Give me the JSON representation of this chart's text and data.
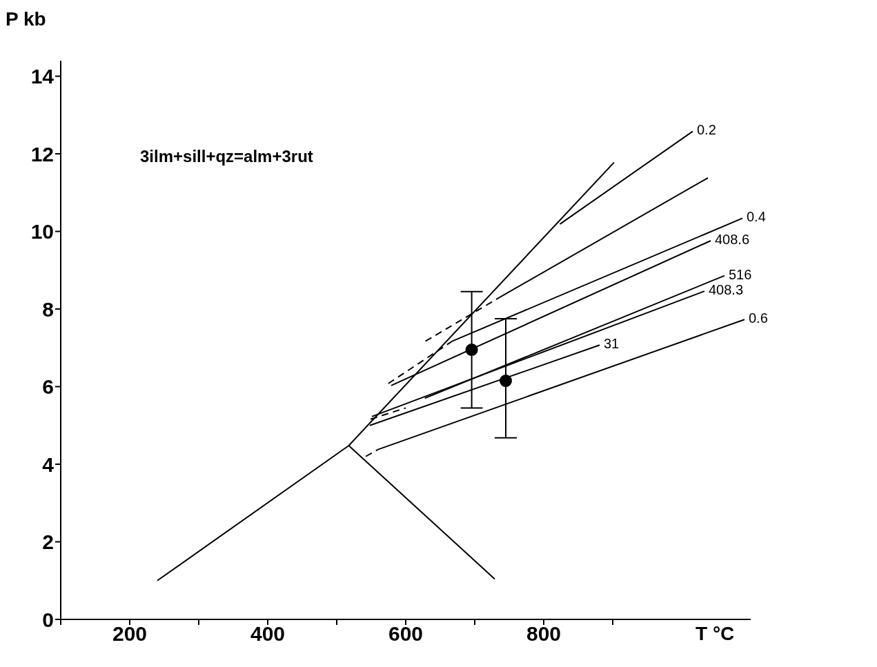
{
  "chart_data": {
    "type": "line",
    "xlabel": "T °C",
    "ylabel": "P kb",
    "annotations": [
      "3ilm+sill+qz=alm+3rut"
    ],
    "xlim": [
      100,
      1100
    ],
    "xticks": [
      {
        "value": 100,
        "label": null
      },
      200,
      {
        "value": 300,
        "label": null
      },
      400,
      {
        "value": 500,
        "label": null
      },
      600,
      {
        "value": 700,
        "label": null
      },
      800,
      {
        "value": 900,
        "label": null
      }
    ],
    "ylim": [
      0,
      14.4
    ],
    "yticks": [
      0,
      2,
      4,
      6,
      8,
      10,
      12,
      14
    ],
    "grid": false,
    "legend": false,
    "marker": "none",
    "line_style": "solid",
    "series": [
      {
        "x": [
          240,
          517.5,
          902
        ],
        "values": [
          1.0,
          4.48,
          11.78
        ],
        "color": "#000000"
      },
      {
        "x": [
          517.5,
          729
        ],
        "values": [
          4.48,
          1.04
        ],
        "color": "#000000"
      },
      {
        "name": "0.2",
        "x": [
          823.5,
          1016
        ],
        "values": [
          10.19,
          12.58
        ],
        "color": "#000000"
      },
      {
        "x": [
          628.6,
          736
        ],
        "values": [
          7.17,
          8.3
        ],
        "color": "#000000",
        "line_style": "dashed"
      },
      {
        "x": [
          736,
          1038
        ],
        "values": [
          8.3,
          11.38
        ],
        "color": "#000000"
      },
      {
        "x": [
          574.8,
          667.4
        ],
        "values": [
          6.08,
          7.17
        ],
        "color": "#000000",
        "line_style": "dashed"
      },
      {
        "name": "0.4",
        "x": [
          667.4,
          1088
        ],
        "values": [
          7.17,
          10.34
        ],
        "color": "#000000"
      },
      {
        "name": "408.6",
        "x": [
          579,
          1042
        ],
        "values": [
          6.03,
          9.76
        ],
        "color": "#000000"
      },
      {
        "x": [
          549,
          600
        ],
        "values": [
          5.16,
          5.45
        ],
        "color": "#000000",
        "line_style": "dashed"
      },
      {
        "name": "516",
        "x": [
          627.7,
          1062
        ],
        "values": [
          5.7,
          8.86
        ],
        "color": "#000000"
      },
      {
        "name": "408.3",
        "x": [
          551,
          1033
        ],
        "values": [
          5.23,
          8.46
        ],
        "color": "#000000"
      },
      {
        "name": "31",
        "x": [
          548,
          881
        ],
        "values": [
          5.0,
          7.07
        ],
        "color": "#000000"
      },
      {
        "x": [
          542,
          560
        ],
        "values": [
          4.2,
          4.38
        ],
        "color": "#000000",
        "line_style": "dashed"
      },
      {
        "name": "0.6",
        "x": [
          560,
          1091
        ],
        "values": [
          4.38,
          7.73
        ],
        "color": "#000000"
      },
      {
        "type": "scatter",
        "x": [
          695.6,
          745
        ],
        "values": [
          6.95,
          6.15
        ],
        "errors": [
          [
            5.45,
            8.45
          ],
          [
            4.68,
            7.75
          ]
        ],
        "color": "#000000",
        "marker": "circle"
      }
    ]
  }
}
